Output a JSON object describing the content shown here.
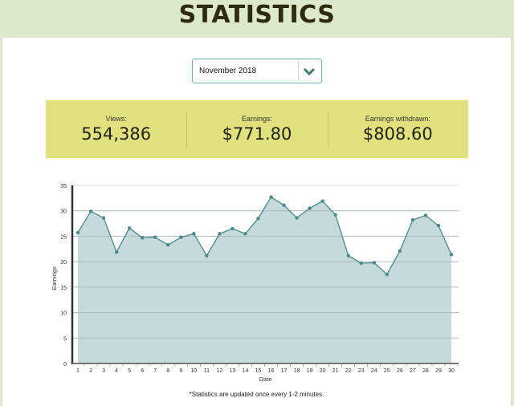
{
  "header": {
    "title": "STATISTICS"
  },
  "month_select": {
    "selected": "November 2018",
    "icon": "chevron-down-icon"
  },
  "stats": [
    {
      "label": "Views:",
      "value": "554,386"
    },
    {
      "label": "Earnings:",
      "value": "$771.80"
    },
    {
      "label": "Earnings withdrawn:",
      "value": "$808.60"
    }
  ],
  "colors": {
    "page_bg": "#dde9cc",
    "stats_bg": "#e1e17e",
    "line": "#4a8a8c",
    "area": "#c6d9db",
    "select_border": "#6fb0b4"
  },
  "footnote": "*Statistics are updated once every 1-2 minutes.",
  "chart_data": {
    "type": "area",
    "title": "",
    "xlabel": "Date",
    "ylabel": "Earnings",
    "ylim": [
      0,
      35
    ],
    "yticks": [
      0,
      5,
      10,
      15,
      20,
      25,
      30,
      35
    ],
    "grid": true,
    "legend": null,
    "x": [
      1,
      2,
      3,
      4,
      5,
      6,
      7,
      8,
      9,
      10,
      11,
      12,
      13,
      14,
      15,
      16,
      17,
      18,
      19,
      20,
      21,
      22,
      23,
      24,
      25,
      26,
      27,
      28,
      29,
      30
    ],
    "series": [
      {
        "name": "Earnings",
        "values": [
          25.7,
          29.9,
          28.6,
          21.9,
          26.6,
          24.7,
          24.8,
          23.3,
          24.8,
          25.5,
          21.2,
          25.5,
          26.5,
          25.5,
          28.5,
          32.7,
          31.1,
          28.6,
          30.5,
          31.9,
          29.2,
          21.2,
          19.7,
          19.8,
          17.5,
          22.1,
          28.2,
          29.1,
          27.1,
          21.4
        ]
      }
    ]
  }
}
